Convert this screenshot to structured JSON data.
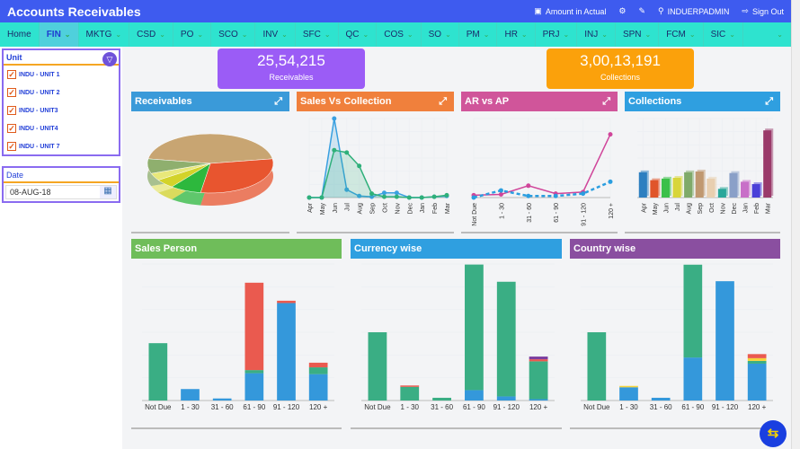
{
  "header": {
    "title": "Accounts Receivables",
    "amount_label": "Amount in Actual",
    "user": "INDUERPADMIN",
    "signout": "Sign Out"
  },
  "nav": [
    "Home",
    "FIN",
    "MKTG",
    "CSD",
    "PO",
    "SCO",
    "INV",
    "SFC",
    "QC",
    "COS",
    "SO",
    "PM",
    "HR",
    "PRJ",
    "INJ",
    "SPN",
    "FCM",
    "SIC"
  ],
  "nav_active": "FIN",
  "sidebar": {
    "unit_label": "Unit",
    "units": [
      "INDU - UNIT 1",
      "INDU - UNIT 2",
      "INDU - UNIT3",
      "INDU - UNIT4",
      "INDU - UNIT 7"
    ],
    "date_label": "Date",
    "date_value": "08-AUG-18"
  },
  "kpis": [
    {
      "value": "25,54,215",
      "label": "Receivables",
      "color": "#9b5cf6"
    },
    {
      "value": "3,00,13,191",
      "label": "Collections",
      "color": "#fba10b"
    }
  ],
  "colors": {
    "header": "#3e5bef",
    "nav": "#2ee3cf",
    "green": "#3aae84",
    "blue": "#3498db",
    "red": "#ea5a4f",
    "purple": "#7b3fa0",
    "yellow": "#f5d33a"
  },
  "chart_data": [
    {
      "type": "pie",
      "title": "Receivables",
      "color": "#3a9ad9",
      "values": [
        45,
        30,
        8,
        5,
        4,
        8
      ],
      "colors": [
        "#c8a572",
        "#e8552f",
        "#2db83d",
        "#d3d32a",
        "#e8e87a",
        "#8faf6e"
      ]
    },
    {
      "type": "line",
      "title": "Sales Vs Collection",
      "color": "#f0803c",
      "categories": [
        "Apr",
        "May",
        "Jun",
        "Jul",
        "Aug",
        "Sep",
        "Oct",
        "Nov",
        "Dec",
        "Jan",
        "Feb",
        "Mar"
      ],
      "series": [
        {
          "values": [
            0,
            0,
            100,
            10,
            2,
            1,
            6,
            6,
            0,
            0,
            1,
            2
          ],
          "color": "#3aa0e0"
        },
        {
          "values": [
            0,
            0,
            60,
            57,
            40,
            5,
            1,
            1,
            0,
            0,
            1,
            3
          ],
          "color": "#2fb07a"
        }
      ]
    },
    {
      "type": "line",
      "title": "AR vs AP",
      "color": "#d0559a",
      "categories": [
        "Not Due",
        "1 - 30",
        "31 - 60",
        "61 - 90",
        "91 - 120",
        "120 +"
      ],
      "series": [
        {
          "values": [
            3,
            4,
            15,
            5,
            7,
            80
          ],
          "color": "#d0459a"
        },
        {
          "values": [
            0,
            9,
            2,
            2,
            5,
            20
          ],
          "color": "#2a9ee0",
          "dashed": true
        }
      ]
    },
    {
      "type": "bar",
      "title": "Collections",
      "color": "#2f9fe0",
      "categories": [
        "Apr",
        "May",
        "Jun",
        "Jul",
        "Aug",
        "Sep",
        "Oct",
        "Nov",
        "Dec",
        "Jan",
        "Feb",
        "Mar"
      ],
      "values": [
        32,
        22,
        24,
        25,
        32,
        33,
        24,
        11,
        31,
        20,
        17,
        85
      ],
      "colors": [
        "#2d7fc0",
        "#e0552a",
        "#3cc04a",
        "#d8d53a",
        "#7faa6a",
        "#c09870",
        "#e8cfb0",
        "#2aa79a",
        "#8aa0c8",
        "#c870c8",
        "#4a40d8",
        "#9a3a6a"
      ]
    },
    {
      "type": "bar",
      "title": "Sales Person",
      "color": "#6fbd5a",
      "categories": [
        "Not Due",
        "1 - 30",
        "31 - 60",
        "61 - 90",
        "91 - 120",
        "120 +"
      ],
      "stacks": [
        [
          [
            "#3aae84",
            42
          ]
        ],
        [
          [
            "#3498db",
            8.4
          ]
        ],
        [
          [
            "#3498db",
            1.5
          ]
        ],
        [
          [
            "#3498db",
            20
          ],
          [
            "#3aae84",
            2.3
          ],
          [
            "#ea5a4f",
            64
          ]
        ],
        [
          [
            "#3498db",
            71.4
          ],
          [
            "#ea5a4f",
            1.7
          ]
        ],
        [
          [
            "#3498db",
            19.3
          ],
          [
            "#3aae84",
            5
          ],
          [
            "#ea5a4f",
            3.4
          ]
        ]
      ]
    },
    {
      "type": "bar",
      "title": "Currency wise",
      "color": "#2f9fe0",
      "categories": [
        "Not Due",
        "1 - 30",
        "31 - 60",
        "61 - 90",
        "91 - 120",
        "120 +"
      ],
      "stacks": [
        [
          [
            "#3aae84",
            50
          ]
        ],
        [
          [
            "#3aae84",
            10
          ],
          [
            "#ea5a4f",
            1
          ]
        ],
        [
          [
            "#3aae84",
            2
          ]
        ],
        [
          [
            "#3498db",
            7.6
          ],
          [
            "#3aae84",
            92
          ]
        ],
        [
          [
            "#3498db",
            3
          ],
          [
            "#3aae84",
            84
          ]
        ],
        [
          [
            "#3498db",
            1
          ],
          [
            "#3aae84",
            27.7
          ],
          [
            "#ea5a4f",
            1.5
          ],
          [
            "#7b3fa0",
            2
          ]
        ]
      ]
    },
    {
      "type": "bar",
      "title": "Country wise",
      "color": "#8a4fa0",
      "categories": [
        "Not Due",
        "1 - 30",
        "31 - 60",
        "61 - 90",
        "91 - 120",
        "120 +"
      ],
      "stacks": [
        [
          [
            "#3aae84",
            50
          ]
        ],
        [
          [
            "#3498db",
            9.7
          ],
          [
            "#f5d33a",
            1
          ]
        ],
        [
          [
            "#3498db",
            2
          ]
        ],
        [
          [
            "#3498db",
            31.5
          ],
          [
            "#3aae84",
            68
          ]
        ],
        [
          [
            "#3498db",
            87.4
          ]
        ],
        [
          [
            "#3498db",
            27
          ],
          [
            "#3aae84",
            2
          ],
          [
            "#f5d33a",
            2
          ],
          [
            "#ea5a4f",
            3
          ]
        ]
      ]
    }
  ]
}
